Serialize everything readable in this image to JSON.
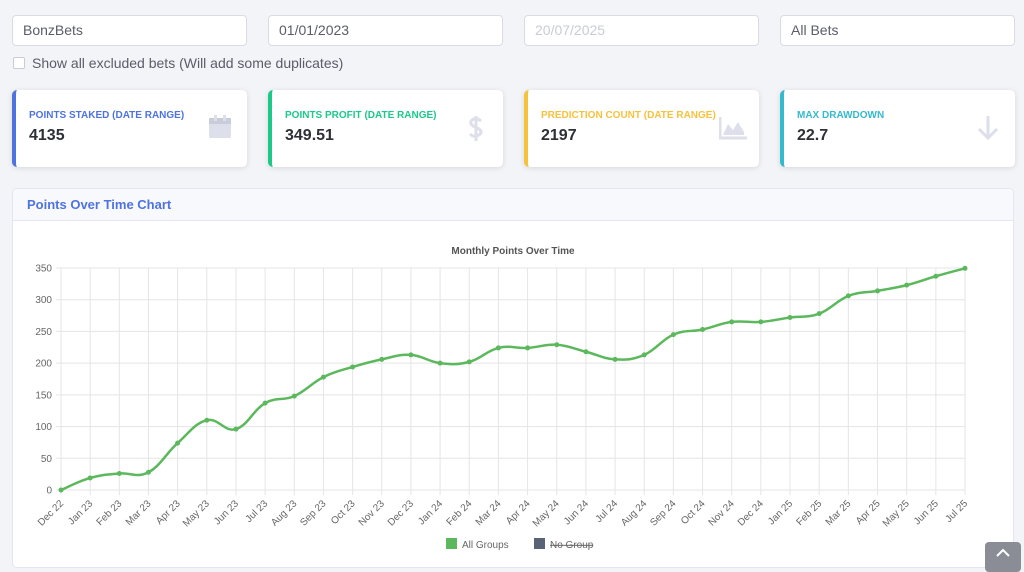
{
  "filters": {
    "group": "BonzBets",
    "start_date": "01/01/2023",
    "end_date": "20/07/2025",
    "bet_type": "All Bets",
    "checkbox_label": "Show all excluded bets (Will add some duplicates)"
  },
  "cards": [
    {
      "label": "POINTS STAKED (DATE RANGE)",
      "value": "4135",
      "color": "#4e73df"
    },
    {
      "label": "POINTS PROFIT (DATE RANGE)",
      "value": "349.51",
      "color": "#1cc88a"
    },
    {
      "label": "PREDICTION COUNT (DATE RANGE)",
      "value": "2197",
      "color": "#f6c23e"
    },
    {
      "label": "MAX DRAWDOWN",
      "value": "22.7",
      "color": "#36b9cc"
    }
  ],
  "panel": {
    "title": "Points Over Time Chart"
  },
  "chart_data": {
    "type": "line",
    "title": "Monthly Points Over Time",
    "categories": [
      "Dec 22",
      "Jan 23",
      "Feb 23",
      "Mar 23",
      "Apr 23",
      "May 23",
      "Jun 23",
      "Jul 23",
      "Aug 23",
      "Sep 23",
      "Oct 23",
      "Nov 23",
      "Dec 23",
      "Jan 24",
      "Feb 24",
      "Mar 24",
      "Apr 24",
      "May 24",
      "Jun 24",
      "Jul 24",
      "Aug 24",
      "Sep 24",
      "Oct 24",
      "Nov 24",
      "Dec 24",
      "Jan 25",
      "Feb 25",
      "Mar 25",
      "Apr 25",
      "May 25",
      "Jun 25",
      "Jul 25"
    ],
    "series": [
      {
        "name": "All Groups",
        "color": "#5cb85c",
        "values": [
          0,
          19,
          26,
          28,
          74,
          110,
          96,
          137,
          148,
          178,
          194,
          206,
          213,
          200,
          202,
          224,
          224,
          229,
          218,
          206,
          213,
          245,
          253,
          265,
          265,
          272,
          278,
          306,
          314,
          323,
          337,
          349.51
        ]
      },
      {
        "name": "No Group",
        "color": "#5a6376",
        "hidden": true
      }
    ],
    "ylim": [
      0,
      350
    ],
    "yticks": [
      0,
      50,
      100,
      150,
      200,
      250,
      300,
      350
    ],
    "grid": true,
    "legend": "bottom"
  }
}
